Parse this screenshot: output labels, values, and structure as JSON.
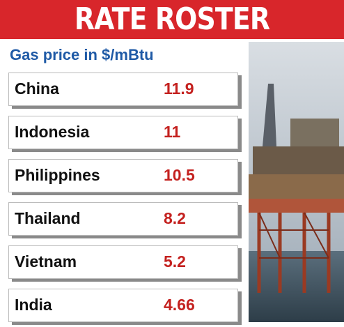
{
  "header": {
    "title": "RATE ROSTER",
    "subtitle": "Gas price in $/mBtu"
  },
  "table": {
    "rows": [
      [
        "China",
        11.9
      ],
      [
        "Indonesia",
        11
      ],
      [
        "Philippines",
        10.5
      ],
      [
        "Thailand",
        8.2
      ],
      [
        "Vietnam",
        5.2
      ],
      [
        "India",
        4.66
      ]
    ]
  }
}
